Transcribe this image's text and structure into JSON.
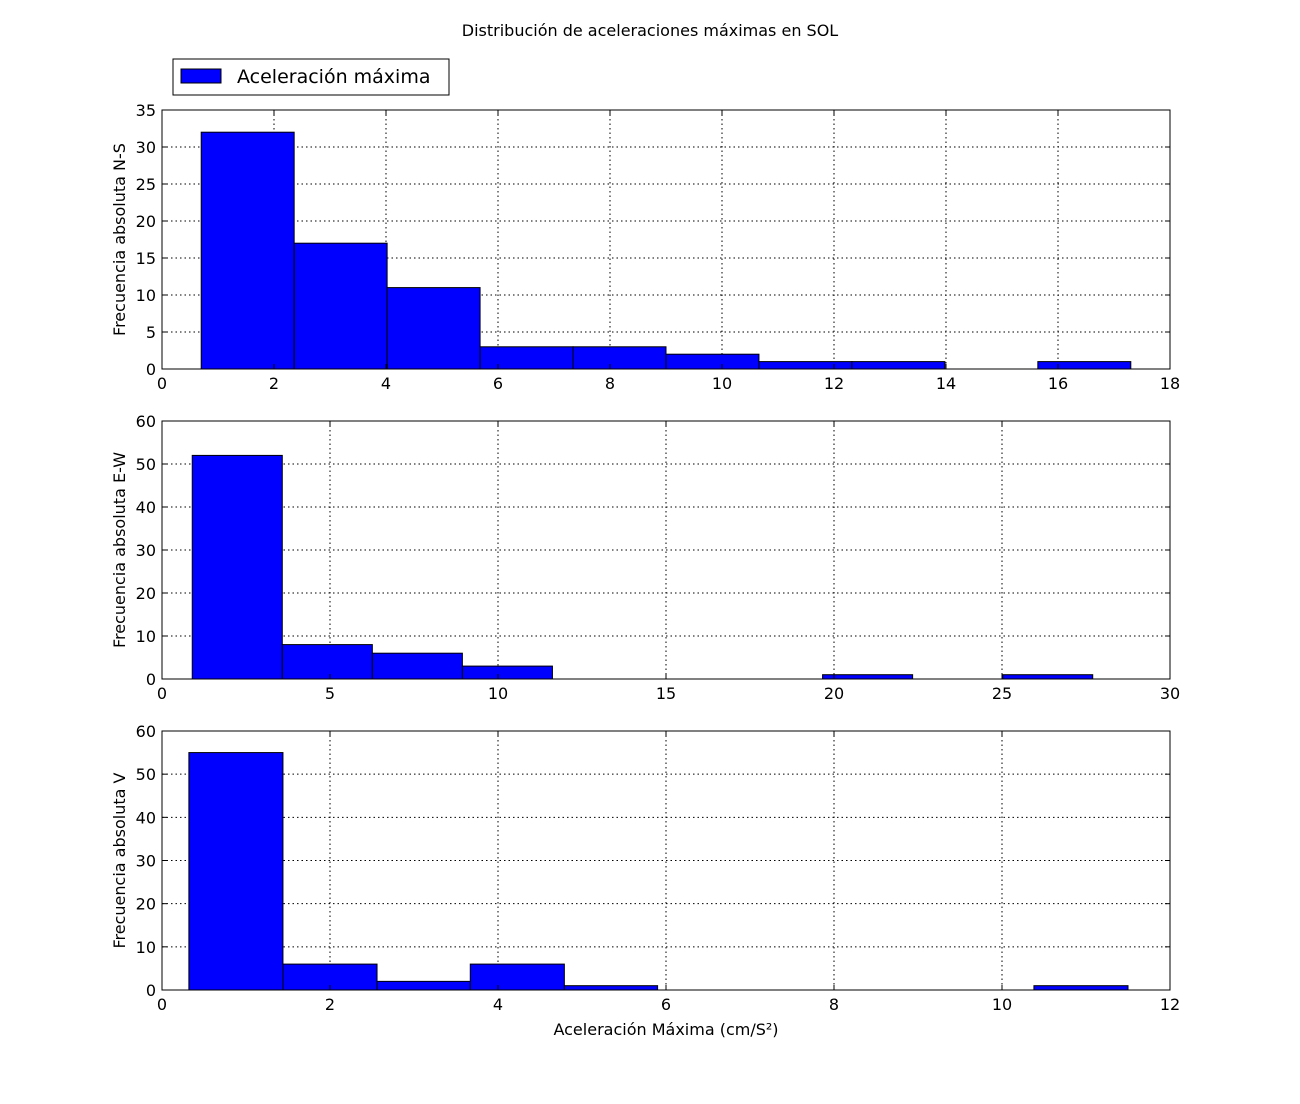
{
  "chart_data": {
    "type": "bar",
    "title": "Distribución de aceleraciones máximas en SOL",
    "legend": {
      "label": "Aceleración máxima",
      "color": "#0000ff",
      "placement": "upper-left"
    },
    "grid": true,
    "panels": [
      {
        "id": "ns",
        "ylabel": "Frecuencia absoluta N-S",
        "xlabel": "",
        "xlim": [
          0,
          18
        ],
        "ylim": [
          0,
          35
        ],
        "xticks": [
          0,
          2,
          4,
          6,
          8,
          10,
          12,
          14,
          16,
          18
        ],
        "yticks": [
          0,
          5,
          10,
          15,
          20,
          25,
          30,
          35
        ],
        "bins": [
          {
            "x0": 0.7,
            "x1": 2.36,
            "count": 32
          },
          {
            "x0": 2.36,
            "x1": 4.02,
            "count": 17
          },
          {
            "x0": 4.02,
            "x1": 5.68,
            "count": 11
          },
          {
            "x0": 5.68,
            "x1": 7.34,
            "count": 3
          },
          {
            "x0": 7.34,
            "x1": 9.0,
            "count": 3
          },
          {
            "x0": 9.0,
            "x1": 10.66,
            "count": 2
          },
          {
            "x0": 10.66,
            "x1": 12.32,
            "count": 1
          },
          {
            "x0": 12.32,
            "x1": 13.98,
            "count": 1
          },
          {
            "x0": 13.98,
            "x1": 15.64,
            "count": 0
          },
          {
            "x0": 15.64,
            "x1": 17.3,
            "count": 1
          }
        ]
      },
      {
        "id": "ew",
        "ylabel": "Frecuencia absoluta E-W",
        "xlabel": "",
        "xlim": [
          0,
          30
        ],
        "ylim": [
          0,
          60
        ],
        "xticks": [
          0,
          5,
          10,
          15,
          20,
          25,
          30
        ],
        "yticks": [
          0,
          10,
          20,
          30,
          40,
          50,
          60
        ],
        "bins": [
          {
            "x0": 0.9,
            "x1": 3.58,
            "count": 52
          },
          {
            "x0": 3.58,
            "x1": 6.26,
            "count": 8
          },
          {
            "x0": 6.26,
            "x1": 8.94,
            "count": 6
          },
          {
            "x0": 8.94,
            "x1": 11.62,
            "count": 3
          },
          {
            "x0": 11.62,
            "x1": 14.3,
            "count": 0
          },
          {
            "x0": 14.3,
            "x1": 16.98,
            "count": 0
          },
          {
            "x0": 16.98,
            "x1": 19.66,
            "count": 0
          },
          {
            "x0": 19.66,
            "x1": 22.34,
            "count": 1
          },
          {
            "x0": 22.34,
            "x1": 25.02,
            "count": 0
          },
          {
            "x0": 25.02,
            "x1": 27.7,
            "count": 1
          }
        ]
      },
      {
        "id": "v",
        "ylabel": "Frecuencia absoluta V",
        "xlabel": "Aceleración Máxima (cm/S²)",
        "xlim": [
          0,
          12
        ],
        "ylim": [
          0,
          60
        ],
        "xticks": [
          0,
          2,
          4,
          6,
          8,
          10,
          12
        ],
        "yticks": [
          0,
          10,
          20,
          30,
          40,
          50,
          60
        ],
        "bins": [
          {
            "x0": 0.32,
            "x1": 1.44,
            "count": 55
          },
          {
            "x0": 1.44,
            "x1": 2.56,
            "count": 6
          },
          {
            "x0": 2.56,
            "x1": 3.67,
            "count": 2
          },
          {
            "x0": 3.67,
            "x1": 4.79,
            "count": 6
          },
          {
            "x0": 4.79,
            "x1": 5.9,
            "count": 1
          },
          {
            "x0": 5.9,
            "x1": 7.02,
            "count": 0
          },
          {
            "x0": 7.02,
            "x1": 8.14,
            "count": 0
          },
          {
            "x0": 8.14,
            "x1": 9.26,
            "count": 0
          },
          {
            "x0": 9.26,
            "x1": 10.38,
            "count": 0
          },
          {
            "x0": 10.38,
            "x1": 11.5,
            "count": 1
          }
        ]
      }
    ]
  }
}
